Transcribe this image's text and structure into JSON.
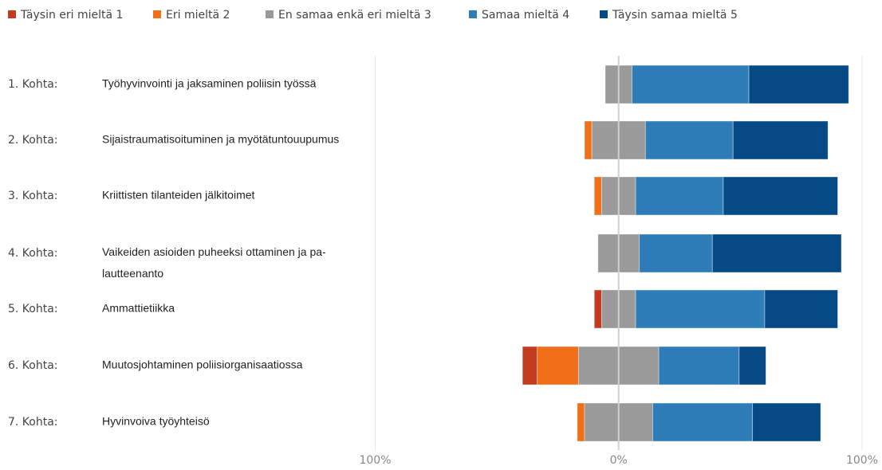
{
  "chart_data": {
    "type": "diverging-bar",
    "categories": [
      "1. Kohta:",
      "2. Kohta:",
      "3. Kohta:",
      "4. Kohta:",
      "5. Kohta:",
      "6. Kohta:",
      "7. Kohta:"
    ],
    "topics": [
      [
        "Työhyvinvointi ja jaksaminen poliisin työssä"
      ],
      [
        "Sijaistraumatisoituminen ja myötätuntouupumus"
      ],
      [
        "Kriittisten tilanteiden jälkitoimet"
      ],
      [
        "Vaikeiden asioiden puheeksi ottaminen ja pa-",
        "lautteenanto"
      ],
      [
        "Ammattietiikka"
      ],
      [
        "Muutosjohtaminen poliisiorganisaatiossa"
      ],
      [
        "Hyvinvoiva työyhteisö"
      ]
    ],
    "series": [
      {
        "name": "Täysin eri mieltä 1",
        "color": "#c23b1e",
        "values": [
          0,
          0,
          0,
          0,
          3,
          6,
          0
        ]
      },
      {
        "name": "Eri mieltä 2",
        "color": "#f07019",
        "values": [
          0,
          3,
          3,
          0,
          0,
          17,
          3
        ]
      },
      {
        "name": "En samaa enkä eri mieltä 3",
        "color": "#9a9a9a",
        "values": [
          11,
          22,
          14,
          17,
          14,
          33,
          28
        ]
      },
      {
        "name": "Samaa mieltä 4",
        "color": "#2e7cb8",
        "values": [
          48,
          36,
          36,
          30,
          53,
          33,
          41
        ]
      },
      {
        "name": "Täysin samaa mieltä 5",
        "color": "#064a85",
        "values": [
          41,
          39,
          47,
          53,
          30,
          11,
          28
        ]
      }
    ],
    "xlim": [
      -100,
      100
    ],
    "xticks": [
      {
        "value": -100,
        "label": "100%"
      },
      {
        "value": 0,
        "label": "0%"
      },
      {
        "value": 100,
        "label": "100%"
      }
    ],
    "grid": true
  }
}
